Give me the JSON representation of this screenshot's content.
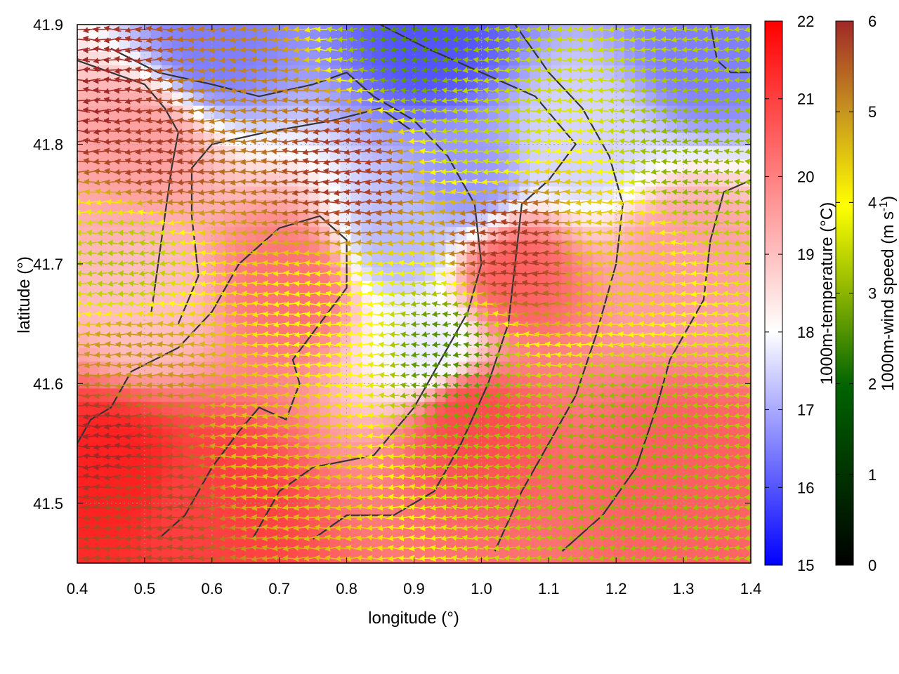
{
  "chart_data": {
    "type": "heatmap",
    "title": "",
    "xlabel": "longitude (°)",
    "ylabel": "latitude (°)",
    "xlim": [
      0.4,
      1.4
    ],
    "ylim": [
      41.45,
      41.9
    ],
    "x_ticks": [
      "0.4",
      "0.5",
      "0.6",
      "0.7",
      "0.8",
      "0.9",
      "1.0",
      "1.1",
      "1.2",
      "1.3",
      "1.4"
    ],
    "x_tick_values": [
      0.4,
      0.5,
      0.6,
      0.7,
      0.8,
      0.9,
      1.0,
      1.1,
      1.2,
      1.3,
      1.4
    ],
    "y_ticks": [
      "41.5",
      "41.6",
      "41.7",
      "41.8",
      "41.9"
    ],
    "y_tick_values": [
      41.5,
      41.6,
      41.7,
      41.8,
      41.9
    ],
    "grid": true,
    "colorbars": [
      {
        "label": "1000m-temperature (°C)",
        "range": [
          15,
          22
        ],
        "ticks": [
          "15",
          "16",
          "17",
          "18",
          "19",
          "20",
          "21",
          "22"
        ],
        "colors": [
          "#0000ff",
          "#ffffff",
          "#ff0000"
        ]
      },
      {
        "label_main": "1000m-wind speed (m s",
        "label_sup": "-1",
        "label_end": ")",
        "range": [
          0,
          6
        ],
        "ticks": [
          "0",
          "1",
          "2",
          "3",
          "4",
          "5",
          "6"
        ],
        "colors": [
          "#000000",
          "#006400",
          "#a8c400",
          "#ffff00",
          "#c8961e",
          "#a02828"
        ]
      }
    ],
    "temperature_centers": [
      {
        "lon": 0.93,
        "lat": 41.88,
        "value": 16.0
      },
      {
        "lon": 0.6,
        "lat": 41.88,
        "value": 16.5
      },
      {
        "lon": 1.33,
        "lat": 41.88,
        "value": 16.5
      },
      {
        "lon": 0.98,
        "lat": 41.77,
        "value": 16.8
      },
      {
        "lon": 0.88,
        "lat": 41.72,
        "value": 17.2
      },
      {
        "lon": 0.92,
        "lat": 41.63,
        "value": 17.8
      },
      {
        "lon": 1.15,
        "lat": 41.8,
        "value": 17.5
      },
      {
        "lon": 0.45,
        "lat": 41.53,
        "value": 21.5
      },
      {
        "lon": 0.6,
        "lat": 41.5,
        "value": 21.0
      },
      {
        "lon": 0.98,
        "lat": 41.57,
        "value": 20.8
      },
      {
        "lon": 1.3,
        "lat": 41.53,
        "value": 20.5
      },
      {
        "lon": 0.72,
        "lat": 41.68,
        "value": 20.2
      },
      {
        "lon": 1.05,
        "lat": 41.69,
        "value": 20.5
      },
      {
        "lon": 0.5,
        "lat": 41.8,
        "value": 19.5
      },
      {
        "lon": 0.5,
        "lat": 41.66,
        "value": 19.0
      },
      {
        "lon": 1.3,
        "lat": 41.7,
        "value": 19.5
      }
    ],
    "wind_speed_centers": [
      {
        "lon": 0.43,
        "lat": 41.84,
        "value": 6.0
      },
      {
        "lon": 0.52,
        "lat": 41.8,
        "value": 5.8
      },
      {
        "lon": 0.8,
        "lat": 41.78,
        "value": 5.8
      },
      {
        "lon": 0.44,
        "lat": 41.55,
        "value": 6.0
      },
      {
        "lon": 0.5,
        "lat": 41.5,
        "value": 5.6
      },
      {
        "lon": 1.05,
        "lat": 41.71,
        "value": 5.8
      },
      {
        "lon": 0.62,
        "lat": 41.84,
        "value": 5.0
      },
      {
        "lon": 0.48,
        "lat": 41.62,
        "value": 4.8
      },
      {
        "lon": 0.7,
        "lat": 41.55,
        "value": 4.3
      },
      {
        "lon": 0.78,
        "lat": 41.65,
        "value": 3.6
      },
      {
        "lon": 1.2,
        "lat": 41.72,
        "value": 4.2
      },
      {
        "lon": 1.0,
        "lat": 41.82,
        "value": 2.8
      },
      {
        "lon": 0.95,
        "lat": 41.63,
        "value": 1.8
      },
      {
        "lon": 1.2,
        "lat": 41.55,
        "value": 2.2
      },
      {
        "lon": 0.47,
        "lat": 41.7,
        "value": 2.5
      },
      {
        "lon": 0.9,
        "lat": 41.88,
        "value": 1.8
      },
      {
        "lon": 1.3,
        "lat": 41.78,
        "value": 2.2
      }
    ],
    "wind_direction_deg_from_east": 180,
    "contour_lines": [
      [
        [
          0.4,
          41.87
        ],
        [
          0.45,
          41.86
        ],
        [
          0.5,
          41.85
        ],
        [
          0.53,
          41.83
        ],
        [
          0.55,
          41.81
        ],
        [
          0.54,
          41.78
        ],
        [
          0.53,
          41.74
        ],
        [
          0.52,
          41.7
        ],
        [
          0.51,
          41.66
        ]
      ],
      [
        [
          0.55,
          41.65
        ],
        [
          0.58,
          41.69
        ],
        [
          0.57,
          41.74
        ],
        [
          0.57,
          41.78
        ],
        [
          0.6,
          41.8
        ],
        [
          0.68,
          41.81
        ],
        [
          0.78,
          41.82
        ],
        [
          0.85,
          41.83
        ],
        [
          0.9,
          41.81
        ]
      ],
      [
        [
          0.52,
          41.47
        ],
        [
          0.56,
          41.49
        ],
        [
          0.6,
          41.53
        ],
        [
          0.64,
          41.56
        ],
        [
          0.67,
          41.58
        ],
        [
          0.71,
          41.57
        ],
        [
          0.73,
          41.6
        ],
        [
          0.72,
          41.62
        ],
        [
          0.76,
          41.65
        ],
        [
          0.8,
          41.68
        ],
        [
          0.8,
          41.72
        ],
        [
          0.76,
          41.74
        ],
        [
          0.7,
          41.73
        ],
        [
          0.64,
          41.7
        ],
        [
          0.6,
          41.66
        ],
        [
          0.55,
          41.63
        ],
        [
          0.48,
          41.61
        ],
        [
          0.45,
          41.58
        ],
        [
          0.42,
          41.57
        ],
        [
          0.4,
          41.55
        ]
      ],
      [
        [
          0.66,
          41.47
        ],
        [
          0.7,
          41.51
        ],
        [
          0.75,
          41.53
        ],
        [
          0.84,
          41.54
        ],
        [
          0.9,
          41.58
        ],
        [
          0.94,
          41.62
        ],
        [
          0.98,
          41.66
        ],
        [
          1.0,
          41.7
        ],
        [
          0.99,
          41.75
        ],
        [
          0.95,
          41.79
        ],
        [
          0.9,
          41.82
        ],
        [
          0.84,
          41.84
        ],
        [
          0.8,
          41.86
        ],
        [
          0.75,
          41.85
        ],
        [
          0.67,
          41.84
        ],
        [
          0.6,
          41.85
        ],
        [
          0.52,
          41.86
        ],
        [
          0.45,
          41.88
        ]
      ],
      [
        [
          0.75,
          41.47
        ],
        [
          0.8,
          41.49
        ],
        [
          0.87,
          41.49
        ],
        [
          0.93,
          41.51
        ],
        [
          0.97,
          41.55
        ],
        [
          1.01,
          41.6
        ],
        [
          1.04,
          41.65
        ],
        [
          1.05,
          41.7
        ],
        [
          1.06,
          41.75
        ],
        [
          1.1,
          41.77
        ],
        [
          1.14,
          41.8
        ],
        [
          1.08,
          41.84
        ],
        [
          1.0,
          41.86
        ],
        [
          0.92,
          41.88
        ],
        [
          0.85,
          41.9
        ]
      ],
      [
        [
          1.02,
          41.46
        ],
        [
          1.06,
          41.51
        ],
        [
          1.1,
          41.55
        ],
        [
          1.14,
          41.59
        ],
        [
          1.17,
          41.64
        ],
        [
          1.2,
          41.7
        ],
        [
          1.21,
          41.75
        ],
        [
          1.19,
          41.79
        ],
        [
          1.15,
          41.83
        ],
        [
          1.1,
          41.86
        ],
        [
          1.05,
          41.9
        ]
      ],
      [
        [
          1.12,
          41.46
        ],
        [
          1.18,
          41.49
        ],
        [
          1.23,
          41.53
        ],
        [
          1.26,
          41.58
        ],
        [
          1.28,
          41.62
        ],
        [
          1.3,
          41.64
        ],
        [
          1.33,
          41.67
        ],
        [
          1.34,
          41.72
        ],
        [
          1.36,
          41.76
        ],
        [
          1.4,
          41.77
        ]
      ],
      [
        [
          1.34,
          41.9
        ],
        [
          1.35,
          41.87
        ],
        [
          1.37,
          41.86
        ],
        [
          1.4,
          41.86
        ]
      ]
    ]
  }
}
